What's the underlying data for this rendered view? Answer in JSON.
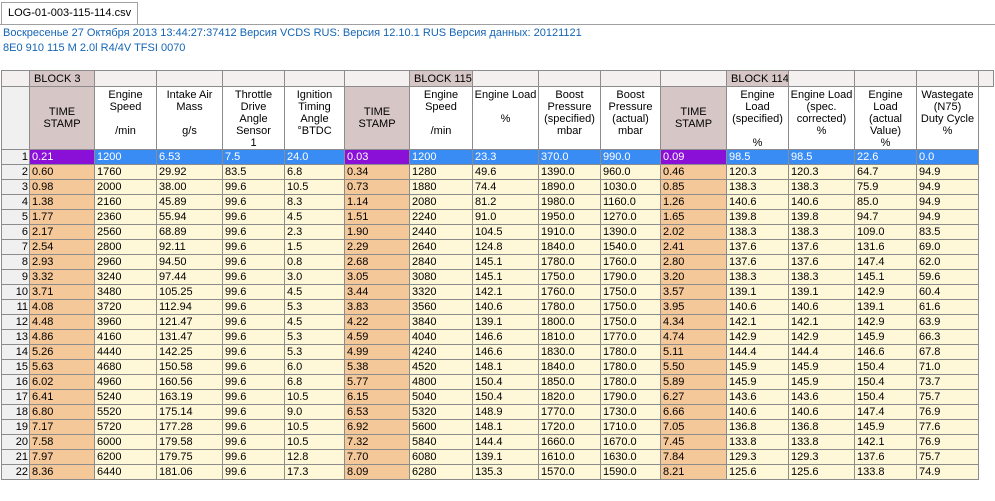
{
  "tab": {
    "label": "LOG-01-003-115-114.csv"
  },
  "info": {
    "line1": "Воскресенье 27 Октября 2013 13:44:27:37412 Версия VCDS RUS:  Версия 12.10.1 RUS Версия данных: 20121121",
    "line2": "8E0 910 115 M  2.0l R4/4V TFSI     0070"
  },
  "blocks": [
    {
      "label": "BLOCK 3",
      "span": 6
    },
    {
      "label": "BLOCK 115",
      "span": 5
    },
    {
      "label": "BLOCK 114",
      "span": 5
    }
  ],
  "columns": [
    {
      "label": "TIME\nSTAMP",
      "unit": "",
      "ts": true
    },
    {
      "label": "Engine\nSpeed",
      "unit": "/min"
    },
    {
      "label": "Intake Air\nMass",
      "unit": "g/s"
    },
    {
      "label": "Throttle\nDrive\nAngle Sensor\n1",
      "unit": ""
    },
    {
      "label": "Ignition\nTiming Angle\n°BTDC",
      "unit": ""
    },
    {
      "label": "TIME\nSTAMP",
      "unit": "",
      "ts": true
    },
    {
      "label": "Engine\nSpeed",
      "unit": "/min"
    },
    {
      "label": "Engine Load",
      "unit": "%"
    },
    {
      "label": "Boost\nPressure\n(specified)",
      "unit": "mbar"
    },
    {
      "label": "Boost\nPressure\n(actual)",
      "unit": "mbar"
    },
    {
      "label": "TIME\nSTAMP",
      "unit": "",
      "ts": true
    },
    {
      "label": "Engine Load\n(specified)",
      "unit": "%"
    },
    {
      "label": "Engine Load\n(spec.\ncorrected)",
      "unit": "%"
    },
    {
      "label": "Engine Load\n(actual\nValue)",
      "unit": "%"
    },
    {
      "label": "Wastegate\n(N75)\nDuty Cycle",
      "unit": "%"
    }
  ],
  "rows": [
    [
      "0.21",
      "1200",
      "6.53",
      "7.5",
      "24.0",
      "0.03",
      "1200",
      "23.3",
      "370.0",
      "990.0",
      "0.09",
      "98.5",
      "98.5",
      "22.6",
      "0.0"
    ],
    [
      "0.60",
      "1760",
      "29.92",
      "83.5",
      "6.8",
      "0.34",
      "1280",
      "49.6",
      "1390.0",
      "960.0",
      "0.46",
      "120.3",
      "120.3",
      "64.7",
      "94.9"
    ],
    [
      "0.98",
      "2000",
      "38.00",
      "99.6",
      "10.5",
      "0.73",
      "1880",
      "74.4",
      "1890.0",
      "1030.0",
      "0.85",
      "138.3",
      "138.3",
      "75.9",
      "94.9"
    ],
    [
      "1.38",
      "2160",
      "45.89",
      "99.6",
      "8.3",
      "1.14",
      "2080",
      "81.2",
      "1980.0",
      "1160.0",
      "1.26",
      "140.6",
      "140.6",
      "85.0",
      "94.9"
    ],
    [
      "1.77",
      "2360",
      "55.94",
      "99.6",
      "4.5",
      "1.51",
      "2240",
      "91.0",
      "1950.0",
      "1270.0",
      "1.65",
      "139.8",
      "139.8",
      "94.7",
      "94.9"
    ],
    [
      "2.17",
      "2560",
      "68.89",
      "99.6",
      "2.3",
      "1.90",
      "2440",
      "104.5",
      "1910.0",
      "1390.0",
      "2.02",
      "138.3",
      "138.3",
      "109.0",
      "83.5"
    ],
    [
      "2.54",
      "2800",
      "92.11",
      "99.6",
      "1.5",
      "2.29",
      "2640",
      "124.8",
      "1840.0",
      "1540.0",
      "2.41",
      "137.6",
      "137.6",
      "131.6",
      "69.0"
    ],
    [
      "2.93",
      "2960",
      "94.50",
      "99.6",
      "0.8",
      "2.68",
      "2840",
      "145.1",
      "1780.0",
      "1760.0",
      "2.80",
      "137.6",
      "137.6",
      "147.4",
      "62.0"
    ],
    [
      "3.32",
      "3240",
      "97.44",
      "99.6",
      "3.0",
      "3.05",
      "3080",
      "145.1",
      "1750.0",
      "1790.0",
      "3.20",
      "138.3",
      "138.3",
      "145.1",
      "59.6"
    ],
    [
      "3.71",
      "3480",
      "105.25",
      "99.6",
      "4.5",
      "3.44",
      "3320",
      "142.1",
      "1760.0",
      "1750.0",
      "3.57",
      "139.1",
      "139.1",
      "142.9",
      "60.4"
    ],
    [
      "4.08",
      "3720",
      "112.94",
      "99.6",
      "5.3",
      "3.83",
      "3560",
      "140.6",
      "1780.0",
      "1750.0",
      "3.95",
      "140.6",
      "140.6",
      "139.1",
      "61.6"
    ],
    [
      "4.48",
      "3960",
      "121.47",
      "99.6",
      "4.5",
      "4.22",
      "3840",
      "139.1",
      "1800.0",
      "1750.0",
      "4.34",
      "142.1",
      "142.1",
      "142.9",
      "63.9"
    ],
    [
      "4.86",
      "4160",
      "131.47",
      "99.6",
      "5.3",
      "4.59",
      "4040",
      "146.6",
      "1810.0",
      "1770.0",
      "4.74",
      "142.9",
      "142.9",
      "145.9",
      "66.3"
    ],
    [
      "5.26",
      "4440",
      "142.25",
      "99.6",
      "5.3",
      "4.99",
      "4240",
      "146.6",
      "1830.0",
      "1780.0",
      "5.11",
      "144.4",
      "144.4",
      "146.6",
      "67.8"
    ],
    [
      "5.63",
      "4680",
      "150.58",
      "99.6",
      "6.0",
      "5.38",
      "4520",
      "148.1",
      "1840.0",
      "1780.0",
      "5.50",
      "145.9",
      "145.9",
      "150.4",
      "71.0"
    ],
    [
      "6.02",
      "4960",
      "160.56",
      "99.6",
      "6.8",
      "5.77",
      "4800",
      "150.4",
      "1850.0",
      "1780.0",
      "5.89",
      "145.9",
      "145.9",
      "150.4",
      "73.7"
    ],
    [
      "6.41",
      "5240",
      "163.19",
      "99.6",
      "10.5",
      "6.15",
      "5040",
      "150.4",
      "1820.0",
      "1790.0",
      "6.27",
      "143.6",
      "143.6",
      "150.4",
      "75.7"
    ],
    [
      "6.80",
      "5520",
      "175.14",
      "99.6",
      "9.0",
      "6.53",
      "5320",
      "148.9",
      "1770.0",
      "1730.0",
      "6.66",
      "140.6",
      "140.6",
      "147.4",
      "76.9"
    ],
    [
      "7.17",
      "5720",
      "177.28",
      "99.6",
      "10.5",
      "6.92",
      "5600",
      "148.1",
      "1720.0",
      "1710.0",
      "7.05",
      "136.8",
      "136.8",
      "145.9",
      "77.6"
    ],
    [
      "7.58",
      "6000",
      "179.58",
      "99.6",
      "10.5",
      "7.32",
      "5840",
      "144.4",
      "1660.0",
      "1670.0",
      "7.45",
      "133.8",
      "133.8",
      "142.1",
      "76.9"
    ],
    [
      "7.97",
      "6200",
      "179.75",
      "99.6",
      "12.8",
      "7.70",
      "6080",
      "139.1",
      "1610.0",
      "1630.0",
      "7.84",
      "129.3",
      "129.3",
      "137.6",
      "75.7"
    ],
    [
      "8.36",
      "6440",
      "181.06",
      "99.6",
      "17.3",
      "8.09",
      "6280",
      "135.3",
      "1570.0",
      "1590.0",
      "8.21",
      "125.6",
      "125.6",
      "133.8",
      "74.9"
    ]
  ],
  "colors": {
    "selection": "#3a8cf5",
    "timestamp_selected": "#8a10d8",
    "timestamp": "#f5c89a",
    "cell": "#fff8d8",
    "block": "#d6c6c6",
    "info_text": "#1565b5"
  }
}
